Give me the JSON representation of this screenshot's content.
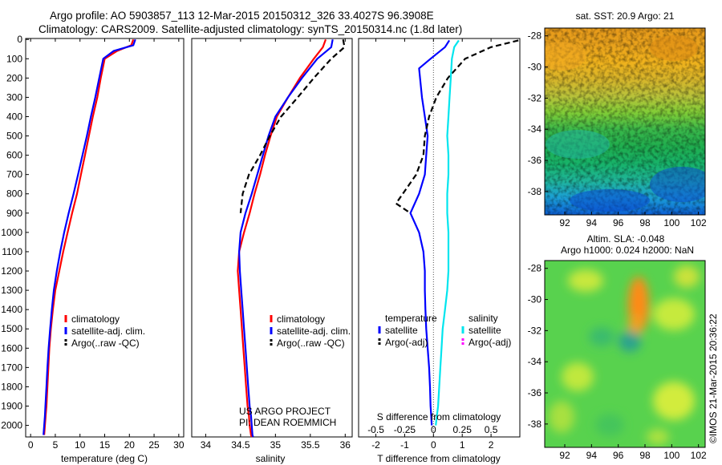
{
  "header": {
    "line1": "Argo profile: AO 5903857_113 12-Mar-2015 20150312_326 33.4027S 96.3908E",
    "line2": "Climatology: CARS2009. Satellite-adjusted climatology: synTS_20150314.nc (1.8d later)"
  },
  "credit": {
    "line1": "US ARGO PROJECT",
    "line2": "PI: DEAN ROEMMICH"
  },
  "footer": {
    "watermark": "©IMOS 21-Mar-2015 20:36:22"
  },
  "colors": {
    "climatology": "#ff0000",
    "satellite_adj": "#0000ff",
    "argo": "#000000",
    "salinity_satellite": "#00e5ee",
    "salinity_argo": "#ff00ff"
  },
  "chart_data": [
    {
      "type": "line",
      "id": "temperature",
      "xlabel": "temperature (deg C)",
      "ylabel": "",
      "xlim": [
        -1,
        31
      ],
      "ylim": [
        2060,
        -5
      ],
      "xticks": [
        0,
        5,
        10,
        15,
        20,
        25,
        30
      ],
      "yticks": [
        0,
        100,
        200,
        300,
        400,
        500,
        600,
        700,
        800,
        900,
        1000,
        1100,
        1200,
        1300,
        1400,
        1500,
        1600,
        1700,
        1800,
        1900,
        2000
      ],
      "legend": [
        "climatology",
        "satellite-adj. clim.",
        "Argo(..raw -QC)"
      ],
      "legend_position": "lower-center",
      "series": [
        {
          "name": "climatology",
          "style": "solid",
          "x": [
            20.8,
            20.4,
            17.5,
            15.0,
            14.2,
            13.5,
            12.6,
            11.8,
            11.0,
            10.2,
            9.4,
            8.4,
            7.5,
            6.6,
            5.8,
            5.0,
            4.5,
            4.1,
            3.8,
            3.6,
            3.4,
            3.2,
            3.05,
            2.9,
            2.75
          ],
          "y": [
            0,
            30,
            60,
            100,
            200,
            300,
            400,
            500,
            600,
            700,
            800,
            900,
            1000,
            1100,
            1200,
            1300,
            1400,
            1500,
            1600,
            1700,
            1800,
            1900,
            1950,
            2000,
            2050
          ]
        },
        {
          "name": "satellite-adj. clim.",
          "style": "solid",
          "x": [
            21.2,
            20.8,
            16.8,
            14.7,
            13.9,
            13.1,
            12.2,
            11.4,
            10.5,
            9.6,
            8.7,
            7.7,
            6.8,
            6.0,
            5.3,
            4.7,
            4.3,
            3.95,
            3.65,
            3.4,
            3.2,
            3.0,
            2.9,
            2.75,
            2.6
          ],
          "y": [
            0,
            30,
            60,
            100,
            200,
            300,
            400,
            500,
            600,
            700,
            800,
            900,
            1000,
            1100,
            1200,
            1300,
            1400,
            1500,
            1600,
            1700,
            1800,
            1900,
            1950,
            2000,
            2050
          ]
        }
      ]
    },
    {
      "type": "line",
      "id": "salinity",
      "xlabel": "salinity",
      "ylabel": "",
      "xlim": [
        33.8,
        36.1
      ],
      "ylim": [
        2060,
        -5
      ],
      "xticks": [
        34,
        34.5,
        35,
        35.5,
        36
      ],
      "xtick_labels": [
        "34",
        "34.5",
        "35",
        "35.5",
        "36"
      ],
      "legend": [
        "climatology",
        "satellite-adj. clim.",
        "Argo(..raw -QC)"
      ],
      "legend_position": "lower-center",
      "series": [
        {
          "name": "climatology",
          "style": "solid",
          "x": [
            35.72,
            35.68,
            35.55,
            35.35,
            35.18,
            35.02,
            34.93,
            34.85,
            34.78,
            34.7,
            34.63,
            34.55,
            34.48,
            34.46,
            34.48,
            34.5,
            34.52,
            34.54,
            34.56,
            34.58,
            34.6,
            34.62,
            34.63,
            34.65,
            34.66
          ],
          "y": [
            0,
            40,
            100,
            200,
            300,
            400,
            500,
            600,
            700,
            800,
            900,
            1000,
            1100,
            1200,
            1300,
            1400,
            1500,
            1600,
            1700,
            1800,
            1900,
            1950,
            2000,
            2050,
            2060
          ]
        },
        {
          "name": "satellite-adj. clim.",
          "style": "solid",
          "x": [
            35.82,
            35.8,
            35.6,
            35.38,
            35.18,
            35.0,
            34.9,
            34.82,
            34.74,
            34.66,
            34.57,
            34.5,
            34.48,
            34.49,
            34.51,
            34.53,
            34.55,
            34.57,
            34.59,
            34.61,
            34.63,
            34.65,
            34.66,
            34.67,
            34.68
          ],
          "y": [
            0,
            40,
            100,
            200,
            300,
            400,
            500,
            600,
            700,
            800,
            900,
            1000,
            1100,
            1200,
            1300,
            1400,
            1500,
            1600,
            1700,
            1800,
            1900,
            1950,
            2000,
            2050,
            2060
          ]
        },
        {
          "name": "Argo(..raw -QC)",
          "style": "dashed",
          "x": [
            35.97,
            35.99,
            35.8,
            35.55,
            35.32,
            35.08,
            34.92,
            34.78,
            34.62,
            34.53,
            34.5
          ],
          "y": [
            0,
            40,
            100,
            200,
            300,
            400,
            500,
            600,
            700,
            800,
            900
          ]
        }
      ]
    },
    {
      "type": "line",
      "id": "differences",
      "xlabel": "T difference from climatology",
      "xlabel_top": "S difference from climatology",
      "xlim": [
        -2.6,
        3.0
      ],
      "ylim": [
        2060,
        -5
      ],
      "xticks": [
        -2,
        -1,
        0,
        1,
        2
      ],
      "s_xticks": [
        -0.5,
        -0.25,
        0,
        0.25,
        0.5
      ],
      "s_xtick_labels": [
        "-0.5",
        "-0.25",
        "0",
        "0.25",
        "0.5"
      ],
      "s_scale": 0.25,
      "legend_groups": [
        "temperature",
        "salinity"
      ],
      "legend": [
        "satellite",
        "Argo(-adj)",
        "satellite",
        "Argo(-adj)"
      ],
      "legend_position": "lower-center",
      "series": [
        {
          "name": "temperature satellite",
          "style": "solid",
          "x": [
            0.55,
            0.4,
            -0.1,
            -0.5,
            -0.4,
            -0.3,
            -0.2,
            -0.25,
            -0.3,
            -0.5,
            -0.8,
            -0.5,
            -0.35,
            -0.3,
            -0.3,
            -0.28,
            -0.25,
            -0.2,
            -0.15,
            -0.12,
            -0.1,
            -0.08,
            -0.06
          ],
          "y": [
            5,
            40,
            100,
            150,
            300,
            400,
            500,
            600,
            700,
            800,
            900,
            1000,
            1100,
            1200,
            1300,
            1400,
            1500,
            1600,
            1700,
            1800,
            1900,
            1950,
            2000
          ]
        },
        {
          "name": "temperature Argo(-adj)",
          "style": "dashed",
          "x": [
            2.95,
            2.0,
            1.1,
            0.5,
            0.1,
            -0.15,
            -0.3,
            -0.35,
            -0.6,
            -1.3,
            -0.8
          ],
          "y": [
            5,
            40,
            100,
            200,
            300,
            400,
            500,
            600,
            700,
            850,
            900
          ]
        },
        {
          "name": "salinity satellite",
          "style": "solid",
          "x": [
            0.22,
            0.18,
            0.16,
            0.15,
            0.14,
            0.13,
            0.12,
            0.13,
            0.13,
            0.12,
            0.12,
            0.13,
            0.13,
            0.13,
            0.12,
            0.1,
            0.08,
            0.07,
            0.06,
            0.05,
            0.04,
            0.03,
            0.02
          ],
          "y": [
            5,
            40,
            100,
            200,
            300,
            400,
            500,
            600,
            700,
            800,
            900,
            1000,
            1100,
            1200,
            1300,
            1400,
            1500,
            1600,
            1700,
            1800,
            1900,
            1950,
            2000
          ]
        }
      ]
    },
    {
      "type": "heatmap",
      "id": "sst_map",
      "title": "sat. SST: 20.9 Argo: 21",
      "xlim": [
        90.5,
        102.5
      ],
      "ylim": [
        -39.5,
        -27.5
      ],
      "xticks": [
        92,
        94,
        96,
        98,
        100,
        102
      ],
      "yticks": [
        -28,
        -30,
        -32,
        -34,
        -36,
        -38
      ],
      "rows_north_to_south": [
        "#e79a1a",
        "#e9a21c",
        "#f0b21c",
        "#d8b52a",
        "#b9c23a",
        "#7fcd37",
        "#39b84a",
        "#1fae4f",
        "#17b36a",
        "#1fb59a",
        "#1b9fd6",
        "#0c5fd6"
      ]
    },
    {
      "type": "heatmap",
      "id": "sla_map",
      "title_line1": "Altim. SLA: -0.048",
      "title_line2": "Argo h1000: 0.024 h2000: NaN",
      "xlim": [
        90.5,
        102.5
      ],
      "ylim": [
        -39.5,
        -27.5
      ],
      "xticks": [
        92,
        94,
        96,
        98,
        100,
        102
      ],
      "yticks": [
        -28,
        -30,
        -32,
        -34,
        -36,
        -38
      ],
      "base_color": "#58d24e"
    }
  ]
}
